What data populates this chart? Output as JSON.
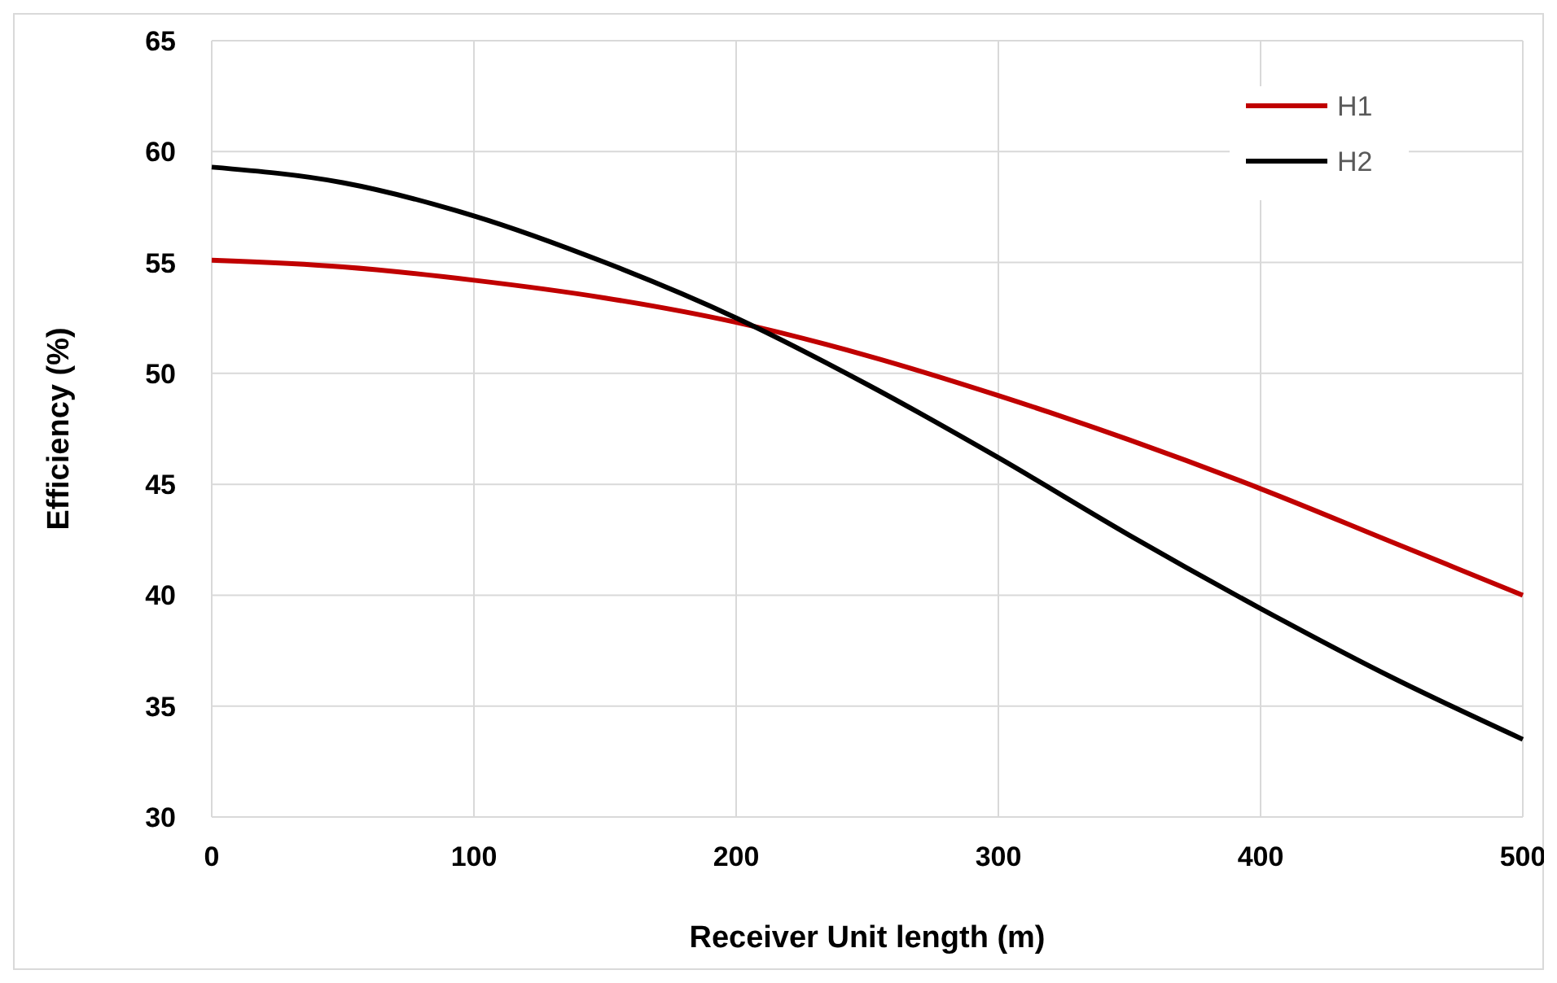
{
  "chart_data": {
    "type": "line",
    "xlabel": "Receiver Unit length (m)",
    "ylabel": "Efficiency (%)",
    "x": [
      0,
      50,
      100,
      150,
      200,
      250,
      300,
      350,
      400,
      450,
      500
    ],
    "series": [
      {
        "name": "H1",
        "color": "#c00000",
        "values": [
          55.1,
          54.8,
          54.2,
          53.4,
          52.3,
          50.8,
          49.0,
          47.0,
          44.8,
          42.4,
          40.0
        ]
      },
      {
        "name": "H2",
        "color": "#000000",
        "values": [
          59.3,
          58.6,
          57.1,
          55.0,
          52.5,
          49.5,
          46.2,
          42.7,
          39.4,
          36.3,
          33.5
        ]
      }
    ],
    "xlim": [
      0,
      500
    ],
    "xticks": [
      0,
      100,
      200,
      300,
      400,
      500
    ],
    "ylim": [
      30,
      65
    ],
    "yticks": [
      30,
      35,
      40,
      45,
      50,
      55,
      60,
      65
    ],
    "grid": true,
    "legend": "top right",
    "marker": "none",
    "line_style": "solid"
  }
}
